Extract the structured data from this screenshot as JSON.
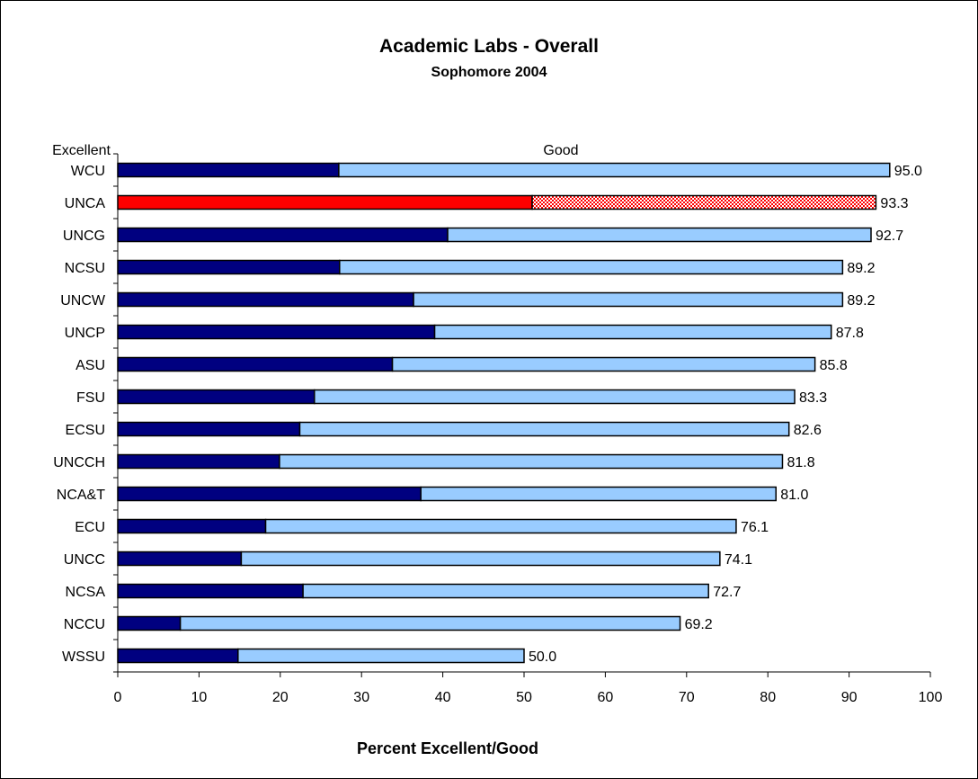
{
  "chart_data": {
    "type": "bar",
    "orientation": "horizontal",
    "stacked": true,
    "title": "Academic Labs - Overall",
    "subtitle": "Sophomore 2004",
    "xlabel": "Percent Excellent/Good",
    "xlim": [
      0,
      100
    ],
    "x_ticks": [
      "0",
      "10",
      "20",
      "30",
      "40",
      "50",
      "60",
      "70",
      "80",
      "90",
      "100"
    ],
    "grid": false,
    "legend_labels": [
      "Excellent",
      "Good"
    ],
    "categories": [
      "WCU",
      "UNCA",
      "UNCG",
      "NCSU",
      "UNCW",
      "UNCP",
      "ASU",
      "FSU",
      "ECSU",
      "UNCCH",
      "NCA&T",
      "ECU",
      "UNCC",
      "NCSA",
      "NCCU",
      "WSSU"
    ],
    "series": [
      {
        "name": "Excellent",
        "values": [
          27.2,
          51.0,
          40.6,
          27.3,
          36.4,
          39.0,
          33.8,
          24.2,
          22.4,
          19.9,
          37.3,
          18.2,
          15.2,
          22.8,
          7.7,
          14.8
        ]
      },
      {
        "name": "Good",
        "values": [
          67.8,
          42.3,
          52.1,
          61.9,
          52.8,
          48.8,
          52.0,
          59.1,
          60.2,
          61.9,
          43.7,
          57.9,
          58.9,
          49.9,
          61.5,
          35.2
        ]
      }
    ],
    "totals": [
      "95.0",
      "93.3",
      "92.7",
      "89.2",
      "89.2",
      "87.8",
      "85.8",
      "83.3",
      "82.6",
      "81.8",
      "81.0",
      "76.1",
      "74.1",
      "72.7",
      "69.2",
      "50.0"
    ],
    "highlight_category": "UNCA",
    "colors": {
      "excellent": "#000080",
      "good": "#99CCFF",
      "highlight_excellent": "#FF0000",
      "highlight_good_pattern": "#FF0000"
    }
  }
}
